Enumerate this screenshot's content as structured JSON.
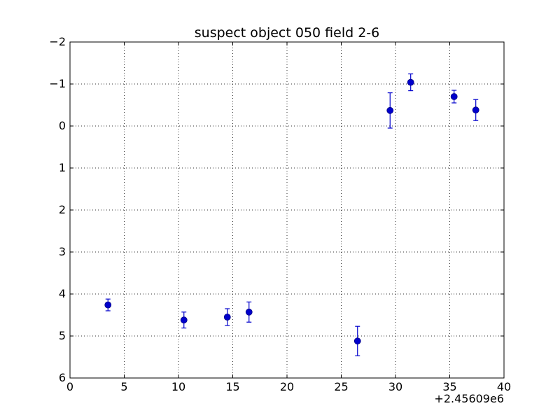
{
  "chart_data": {
    "type": "scatter",
    "title": "suspect object 050 field 2-6",
    "xlabel": "",
    "ylabel": "",
    "x_offset_label": "+2.45609e6",
    "xlim": [
      0,
      40
    ],
    "ylim": [
      6,
      -2
    ],
    "y_inverted": true,
    "grid": true,
    "x_ticks": [
      0,
      5,
      10,
      15,
      20,
      25,
      30,
      35,
      40
    ],
    "x_tick_labels": [
      "0",
      "5",
      "10",
      "15",
      "20",
      "25",
      "30",
      "35",
      "40"
    ],
    "y_ticks": [
      -2,
      -1,
      0,
      1,
      2,
      3,
      4,
      5,
      6
    ],
    "y_tick_labels": [
      "−2",
      "−1",
      "0",
      "1",
      "2",
      "3",
      "4",
      "5",
      "6"
    ],
    "color": "#0000cc",
    "series": [
      {
        "x": [
          3.5,
          10.5,
          14.5,
          16.5,
          26.5,
          29.5,
          31.4,
          35.4,
          37.4
        ],
        "y": [
          4.26,
          4.62,
          4.55,
          4.43,
          5.12,
          -0.37,
          -1.04,
          -0.7,
          -0.38
        ],
        "yerr": [
          0.14,
          0.19,
          0.2,
          0.24,
          0.35,
          0.42,
          0.2,
          0.15,
          0.25
        ]
      }
    ]
  }
}
